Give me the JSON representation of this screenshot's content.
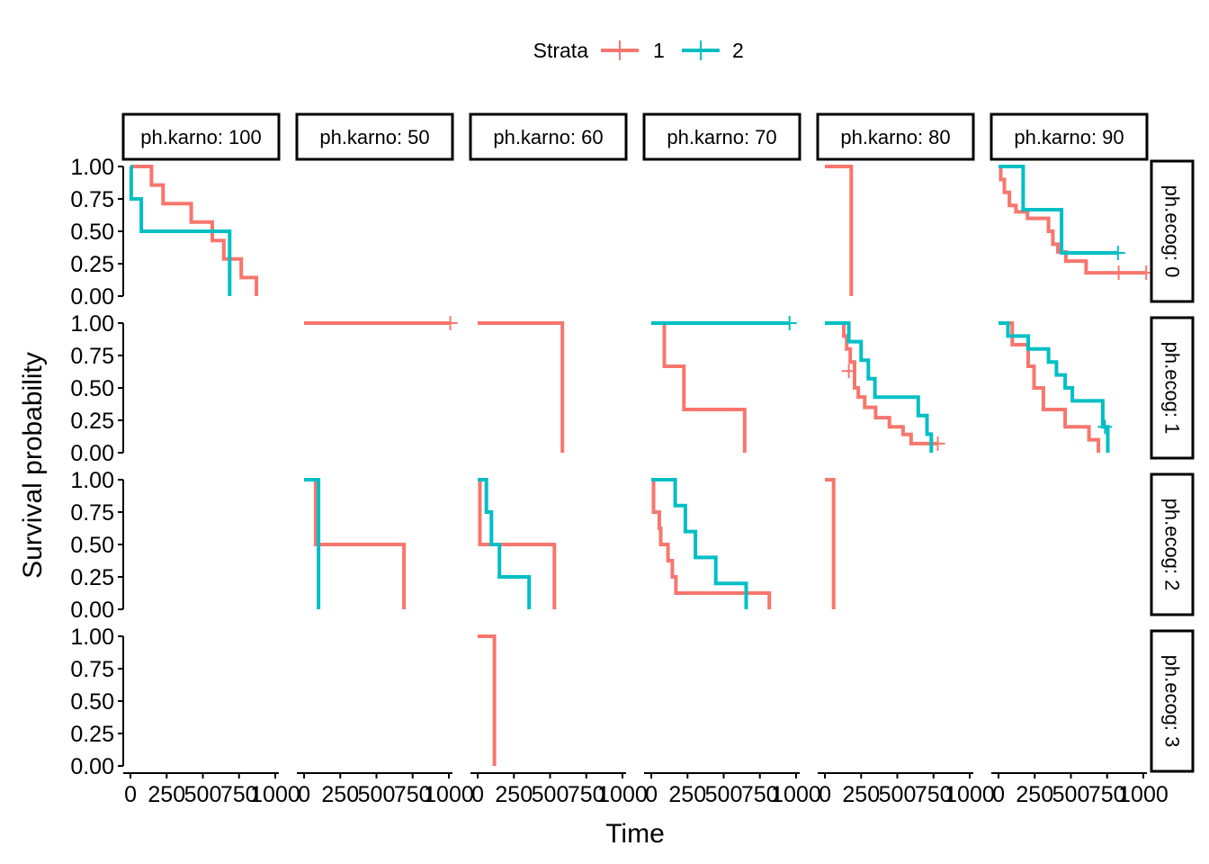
{
  "chart_data": {
    "type": "line",
    "subtype": "kaplan-meier survival curves (faceted grid)",
    "xlabel": "Time",
    "ylabel": "Survival probability",
    "legend": {
      "title": "Strata",
      "position": "top",
      "entries": [
        {
          "name": "1",
          "color": "#F8766D"
        },
        {
          "name": "2",
          "color": "#00BFC4"
        }
      ]
    },
    "column_facets": [
      "ph.karno: 100",
      "ph.karno: 50",
      "ph.karno: 60",
      "ph.karno: 70",
      "ph.karno: 80",
      "ph.karno: 90"
    ],
    "row_facets": [
      "ph.ecog: 0",
      "ph.ecog: 1",
      "ph.ecog: 2",
      "ph.ecog: 3"
    ],
    "x_ticks": [
      0,
      250,
      500,
      750,
      1000
    ],
    "x_tick_labels": [
      "0",
      "250",
      "500",
      "750",
      "1000"
    ],
    "y_ticks": [
      0,
      0.25,
      0.5,
      0.75,
      1
    ],
    "y_tick_labels": [
      "0.00",
      "0.25",
      "0.50",
      "0.75",
      "1.00"
    ],
    "xlim": [
      -50,
      1025
    ],
    "ylim": [
      0,
      1
    ],
    "grid": false,
    "panels": [
      {
        "row": 0,
        "col": 0,
        "series": [
          {
            "strata": "1",
            "steps": [
              [
                0,
                1
              ],
              [
                145,
                1
              ],
              [
                145,
                0.857
              ],
              [
                225,
                0.857
              ],
              [
                225,
                0.714
              ],
              [
                420,
                0.714
              ],
              [
                420,
                0.571
              ],
              [
                565,
                0.571
              ],
              [
                565,
                0.429
              ],
              [
                645,
                0.429
              ],
              [
                645,
                0.286
              ],
              [
                765,
                0.286
              ],
              [
                765,
                0.143
              ],
              [
                870,
                0.143
              ],
              [
                870,
                0
              ]
            ],
            "censored": []
          },
          {
            "strata": "2",
            "steps": [
              [
                0,
                1
              ],
              [
                5,
                1
              ],
              [
                5,
                0.75
              ],
              [
                75,
                0.75
              ],
              [
                75,
                0.5
              ],
              [
                685,
                0.5
              ],
              [
                685,
                0
              ]
            ],
            "censored": []
          }
        ]
      },
      {
        "row": 0,
        "col": 4,
        "series": [
          {
            "strata": "1",
            "steps": [
              [
                0,
                1
              ],
              [
                182,
                1
              ],
              [
                182,
                0
              ]
            ],
            "censored": []
          }
        ]
      },
      {
        "row": 0,
        "col": 5,
        "series": [
          {
            "strata": "1",
            "steps": [
              [
                0,
                1
              ],
              [
                15,
                1
              ],
              [
                15,
                0.9
              ],
              [
                40,
                0.9
              ],
              [
                40,
                0.8
              ],
              [
                75,
                0.8
              ],
              [
                75,
                0.7
              ],
              [
                120,
                0.7
              ],
              [
                120,
                0.65
              ],
              [
                200,
                0.65
              ],
              [
                200,
                0.6
              ],
              [
                345,
                0.6
              ],
              [
                345,
                0.5
              ],
              [
                375,
                0.5
              ],
              [
                375,
                0.4
              ],
              [
                410,
                0.4
              ],
              [
                410,
                0.34
              ],
              [
                465,
                0.34
              ],
              [
                465,
                0.27
              ],
              [
                605,
                0.27
              ],
              [
                605,
                0.18
              ],
              [
                1020,
                0.18
              ]
            ],
            "censored": [
              [
                830,
                0.18
              ],
              [
                1020,
                0.18
              ]
            ]
          },
          {
            "strata": "2",
            "steps": [
              [
                0,
                1
              ],
              [
                170,
                1
              ],
              [
                170,
                0.667
              ],
              [
                435,
                0.667
              ],
              [
                435,
                0.333
              ],
              [
                825,
                0.333
              ]
            ],
            "censored": [
              [
                825,
                0.333
              ]
            ]
          }
        ]
      },
      {
        "row": 1,
        "col": 1,
        "series": [
          {
            "strata": "1",
            "steps": [
              [
                0,
                1
              ],
              [
                1010,
                1
              ]
            ],
            "censored": [
              [
                1010,
                1
              ]
            ]
          }
        ]
      },
      {
        "row": 1,
        "col": 2,
        "series": [
          {
            "strata": "1",
            "steps": [
              [
                0,
                1
              ],
              [
                585,
                1
              ],
              [
                585,
                0
              ]
            ],
            "censored": []
          }
        ]
      },
      {
        "row": 1,
        "col": 3,
        "series": [
          {
            "strata": "1",
            "steps": [
              [
                0,
                1
              ],
              [
                90,
                1
              ],
              [
                90,
                0.667
              ],
              [
                225,
                0.667
              ],
              [
                225,
                0.333
              ],
              [
                645,
                0.333
              ],
              [
                645,
                0
              ]
            ],
            "censored": []
          },
          {
            "strata": "2",
            "steps": [
              [
                0,
                1
              ],
              [
                955,
                1
              ]
            ],
            "censored": [
              [
                955,
                1
              ]
            ]
          }
        ]
      },
      {
        "row": 1,
        "col": 4,
        "series": [
          {
            "strata": "1",
            "steps": [
              [
                0,
                1
              ],
              [
                130,
                1
              ],
              [
                130,
                0.9
              ],
              [
                150,
                0.9
              ],
              [
                150,
                0.8
              ],
              [
                175,
                0.8
              ],
              [
                175,
                0.7
              ],
              [
                205,
                0.7
              ],
              [
                205,
                0.5
              ],
              [
                230,
                0.5
              ],
              [
                230,
                0.43
              ],
              [
                275,
                0.43
              ],
              [
                275,
                0.35
              ],
              [
                350,
                0.35
              ],
              [
                350,
                0.27
              ],
              [
                445,
                0.27
              ],
              [
                445,
                0.2
              ],
              [
                540,
                0.2
              ],
              [
                540,
                0.14
              ],
              [
                595,
                0.14
              ],
              [
                595,
                0.07
              ],
              [
                780,
                0.07
              ]
            ],
            "censored": [
              [
                165,
                0.63
              ],
              [
                780,
                0.07
              ]
            ]
          },
          {
            "strata": "2",
            "steps": [
              [
                0,
                1
              ],
              [
                165,
                1
              ],
              [
                165,
                0.857
              ],
              [
                250,
                0.857
              ],
              [
                250,
                0.714
              ],
              [
                300,
                0.714
              ],
              [
                300,
                0.571
              ],
              [
                345,
                0.571
              ],
              [
                345,
                0.429
              ],
              [
                645,
                0.429
              ],
              [
                645,
                0.286
              ],
              [
                705,
                0.286
              ],
              [
                705,
                0.143
              ],
              [
                735,
                0.143
              ],
              [
                735,
                0
              ]
            ],
            "censored": []
          }
        ]
      },
      {
        "row": 1,
        "col": 5,
        "series": [
          {
            "strata": "1",
            "steps": [
              [
                0,
                1
              ],
              [
                95,
                1
              ],
              [
                95,
                0.833
              ],
              [
                205,
                0.833
              ],
              [
                205,
                0.667
              ],
              [
                245,
                0.667
              ],
              [
                245,
                0.5
              ],
              [
                310,
                0.5
              ],
              [
                310,
                0.333
              ],
              [
                460,
                0.333
              ],
              [
                460,
                0.2
              ],
              [
                625,
                0.2
              ],
              [
                625,
                0.1
              ],
              [
                690,
                0.1
              ],
              [
                690,
                0
              ]
            ],
            "censored": []
          },
          {
            "strata": "2",
            "steps": [
              [
                0,
                1
              ],
              [
                65,
                1
              ],
              [
                65,
                0.9
              ],
              [
                205,
                0.9
              ],
              [
                205,
                0.8
              ],
              [
                345,
                0.8
              ],
              [
                345,
                0.7
              ],
              [
                400,
                0.7
              ],
              [
                400,
                0.6
              ],
              [
                460,
                0.6
              ],
              [
                460,
                0.5
              ],
              [
                510,
                0.5
              ],
              [
                510,
                0.4
              ],
              [
                720,
                0.4
              ],
              [
                720,
                0.2
              ],
              [
                755,
                0.2
              ],
              [
                755,
                0
              ]
            ],
            "censored": [
              [
                735,
                0.2
              ]
            ]
          }
        ]
      },
      {
        "row": 2,
        "col": 1,
        "series": [
          {
            "strata": "1",
            "steps": [
              [
                0,
                1
              ],
              [
                80,
                1
              ],
              [
                80,
                0.5
              ],
              [
                690,
                0.5
              ],
              [
                690,
                0
              ]
            ],
            "censored": []
          },
          {
            "strata": "2",
            "steps": [
              [
                0,
                1
              ],
              [
                100,
                1
              ],
              [
                100,
                0
              ]
            ],
            "censored": []
          }
        ]
      },
      {
        "row": 2,
        "col": 2,
        "series": [
          {
            "strata": "1",
            "steps": [
              [
                0,
                1
              ],
              [
                15,
                1
              ],
              [
                15,
                0.5
              ],
              [
                530,
                0.5
              ],
              [
                530,
                0
              ]
            ],
            "censored": []
          },
          {
            "strata": "2",
            "steps": [
              [
                0,
                1
              ],
              [
                60,
                1
              ],
              [
                60,
                0.75
              ],
              [
                95,
                0.75
              ],
              [
                95,
                0.5
              ],
              [
                150,
                0.5
              ],
              [
                150,
                0.25
              ],
              [
                355,
                0.25
              ],
              [
                355,
                0
              ]
            ],
            "censored": []
          }
        ]
      },
      {
        "row": 2,
        "col": 3,
        "series": [
          {
            "strata": "1",
            "steps": [
              [
                0,
                1
              ],
              [
                15,
                1
              ],
              [
                15,
                0.75
              ],
              [
                55,
                0.75
              ],
              [
                55,
                0.625
              ],
              [
                65,
                0.625
              ],
              [
                65,
                0.5
              ],
              [
                115,
                0.5
              ],
              [
                115,
                0.375
              ],
              [
                145,
                0.375
              ],
              [
                145,
                0.25
              ],
              [
                170,
                0.25
              ],
              [
                170,
                0.125
              ],
              [
                815,
                0.125
              ],
              [
                815,
                0
              ]
            ],
            "censored": []
          },
          {
            "strata": "2",
            "steps": [
              [
                0,
                1
              ],
              [
                165,
                1
              ],
              [
                165,
                0.8
              ],
              [
                235,
                0.8
              ],
              [
                235,
                0.6
              ],
              [
                305,
                0.6
              ],
              [
                305,
                0.4
              ],
              [
                445,
                0.4
              ],
              [
                445,
                0.2
              ],
              [
                655,
                0.2
              ],
              [
                655,
                0
              ]
            ],
            "censored": []
          }
        ]
      },
      {
        "row": 2,
        "col": 4,
        "series": [
          {
            "strata": "1",
            "steps": [
              [
                0,
                1
              ],
              [
                60,
                1
              ],
              [
                60,
                0
              ]
            ],
            "censored": []
          }
        ]
      },
      {
        "row": 3,
        "col": 2,
        "series": [
          {
            "strata": "1",
            "steps": [
              [
                0,
                1
              ],
              [
                115,
                1
              ],
              [
                115,
                0
              ]
            ],
            "censored": []
          }
        ]
      }
    ]
  }
}
